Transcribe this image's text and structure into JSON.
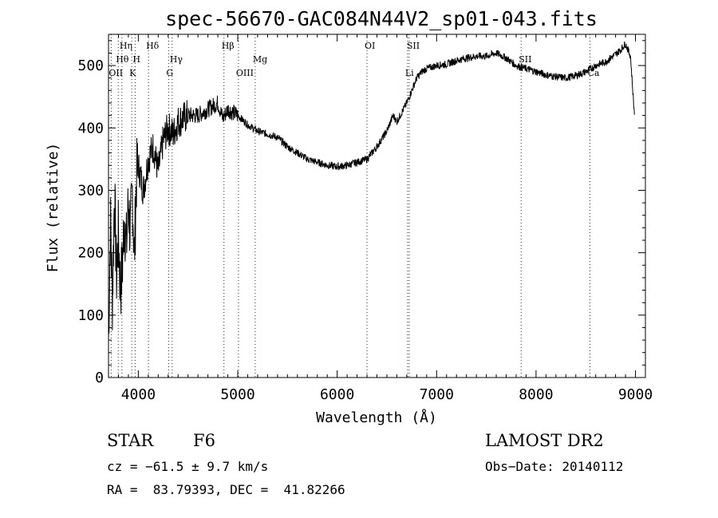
{
  "chart_data": {
    "type": "line",
    "title": "spec-56670-GAC084N44V2_sp01-043.fits",
    "xlabel": "Wavelength (Å)",
    "ylabel": "Flux (relative)",
    "xlim": [
      3700,
      9100
    ],
    "ylim": [
      0,
      550
    ],
    "xticks": [
      4000,
      5000,
      6000,
      7000,
      8000,
      9000
    ],
    "yticks": [
      0,
      100,
      200,
      300,
      400,
      500
    ],
    "grid": false,
    "color": "#000000",
    "line_marker_color": "#8b0000",
    "series": [
      {
        "x": [
          3700,
          3720,
          3740,
          3760,
          3780,
          3800,
          3820,
          3840,
          3860,
          3880,
          3900,
          3920,
          3940,
          3960,
          3980,
          4000,
          4050,
          4100,
          4150,
          4200,
          4250,
          4300,
          4350,
          4400,
          4500,
          4600,
          4700,
          4800,
          4850,
          4900,
          5000,
          5100,
          5200,
          5300,
          5400,
          5500,
          5600,
          5700,
          5800,
          5900,
          6000,
          6100,
          6200,
          6300,
          6400,
          6500,
          6563,
          6600,
          6650,
          6700,
          6750,
          6800,
          6850,
          6900,
          7000,
          7100,
          7200,
          7300,
          7400,
          7500,
          7600,
          7700,
          7800,
          7900,
          8000,
          8100,
          8200,
          8300,
          8400,
          8500,
          8600,
          8700,
          8800,
          8850,
          8900,
          8950,
          8990
        ],
        "y": [
          60,
          250,
          120,
          300,
          160,
          230,
          140,
          180,
          260,
          210,
          280,
          230,
          300,
          190,
          320,
          340,
          300,
          350,
          370,
          330,
          380,
          400,
          390,
          410,
          420,
          420,
          430,
          440,
          415,
          430,
          420,
          405,
          395,
          390,
          385,
          370,
          360,
          350,
          345,
          340,
          338,
          340,
          345,
          350,
          370,
          395,
          420,
          410,
          425,
          440,
          460,
          480,
          490,
          495,
          500,
          502,
          508,
          512,
          515,
          515,
          520,
          512,
          500,
          495,
          490,
          485,
          482,
          480,
          484,
          490,
          500,
          506,
          518,
          525,
          535,
          515,
          420
        ]
      }
    ],
    "spectral_lines": [
      {
        "label": "Hη",
        "x": 3835,
        "row": 0
      },
      {
        "label": "Hθ",
        "x": 3798,
        "row": 1
      },
      {
        "label": "OII",
        "x": 3727,
        "row": 2
      },
      {
        "label": "H",
        "x": 3968,
        "row": 1
      },
      {
        "label": "K",
        "x": 3934,
        "row": 2
      },
      {
        "label": "Hδ",
        "x": 4102,
        "row": 0
      },
      {
        "label": "Hγ",
        "x": 4340,
        "row": 1
      },
      {
        "label": "G",
        "x": 4305,
        "row": 2
      },
      {
        "label": "Hβ",
        "x": 4861,
        "row": 0
      },
      {
        "label": "OIII",
        "x": 5007,
        "row": 2
      },
      {
        "label": "Mg",
        "x": 5175,
        "row": 1
      },
      {
        "label": "OI",
        "x": 6300,
        "row": 0
      },
      {
        "label": "SII",
        "x": 6724,
        "row": 0
      },
      {
        "label": "Li",
        "x": 6708,
        "row": 2
      },
      {
        "label": "SII",
        "x": 7850,
        "row": 1
      },
      {
        "label": "Ca",
        "x": 8542,
        "row": 2
      }
    ]
  },
  "info": {
    "class": "STAR",
    "subclass": "F6",
    "survey": "LAMOST DR2",
    "cz": "cz = −61.5 ± 9.7 km/s",
    "obs_date": "Obs−Date: 20140112",
    "coords": "RA =  83.79393, DEC =  41.82266"
  }
}
